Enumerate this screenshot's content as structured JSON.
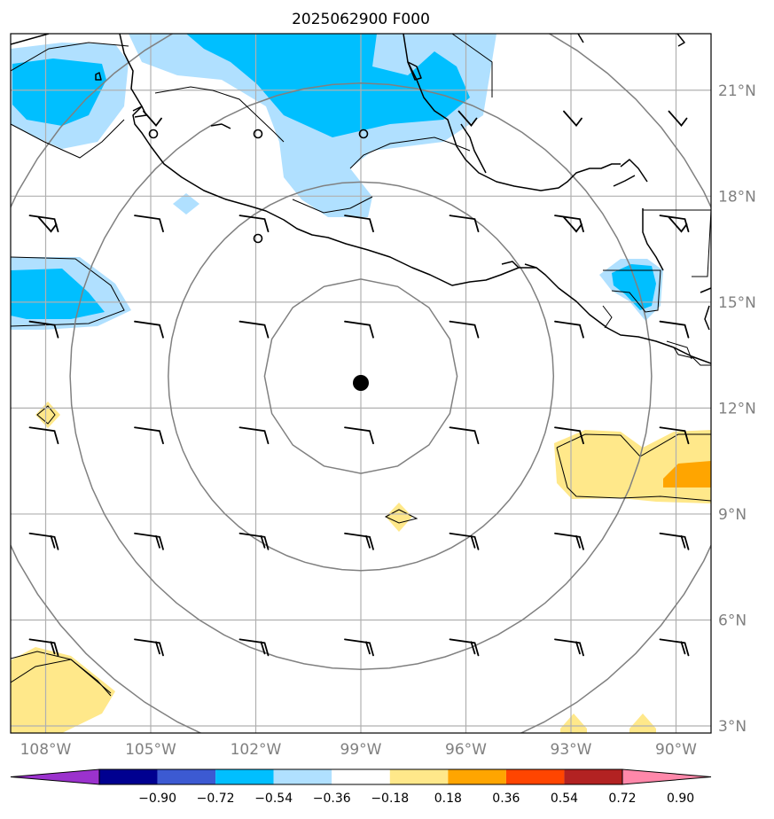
{
  "title": "2025062900 F000",
  "map": {
    "lon_range": [
      -109,
      -89
    ],
    "lat_range": [
      2.8,
      22.6
    ],
    "lon_ticks": [
      {
        "value": -108,
        "label": "108°W"
      },
      {
        "value": -105,
        "label": "105°W"
      },
      {
        "value": -102,
        "label": "102°W"
      },
      {
        "value": -99,
        "label": "99°W"
      },
      {
        "value": -96,
        "label": "96°W"
      },
      {
        "value": -93,
        "label": "93°W"
      },
      {
        "value": -90,
        "label": "90°W"
      }
    ],
    "lat_ticks": [
      {
        "value": 21,
        "label": "21°N"
      },
      {
        "value": 18,
        "label": "18°N"
      },
      {
        "value": 15,
        "label": "15°N"
      },
      {
        "value": 12,
        "label": "12°N"
      },
      {
        "value": 9,
        "label": "9°N"
      },
      {
        "value": 6,
        "label": "6°N"
      },
      {
        "value": 3,
        "label": "3°N"
      }
    ],
    "center": {
      "lon": -99.0,
      "lat": 12.9
    },
    "range_rings_deg": [
      2.75,
      5.5,
      8.3,
      11.1
    ]
  },
  "colorbar": {
    "levels": [
      "−0.90",
      "−0.72",
      "−0.54",
      "−0.36",
      "−0.18",
      "0.18",
      "0.36",
      "0.54",
      "0.72",
      "0.90"
    ],
    "colors": [
      "#9b32cd",
      "#000090",
      "#3c5ad2",
      "#00bfff",
      "#b0e0ff",
      "#ffffff",
      "#ffe88a",
      "#ffa500",
      "#ff4500",
      "#b22222",
      "#ff88aa"
    ]
  },
  "field_colors": {
    "neg_light": "#b0e0ff",
    "neg_dark": "#00bfff",
    "pos_light": "#ffe88a",
    "pos_dark": "#ffa500"
  },
  "chart_data": {
    "type": "heatmap",
    "title": "2025062900 F000",
    "xlabel": "",
    "ylabel": "",
    "xlim": [
      -109,
      -89
    ],
    "ylim": [
      2.8,
      22.6
    ],
    "shaded_regions": [
      {
        "level": "-0.54 to -0.36",
        "lon": [
          -108.5,
          -106.5
        ],
        "lat": [
          20.2,
          21.8
        ]
      },
      {
        "level": "-0.54 to -0.36",
        "lon": [
          -109,
          -106.5
        ],
        "lat": [
          14.8,
          16.2
        ]
      },
      {
        "level": "-0.54 to -0.36",
        "lon": [
          -103,
          -95.5
        ],
        "lat": [
          20.5,
          22.6
        ]
      },
      {
        "level": "0.36 to 0.54",
        "lon": [
          -90.5,
          -89
        ],
        "lat": [
          10.0,
          10.7
        ]
      },
      {
        "level": "0.18 to 0.36",
        "lon": [
          -93.5,
          -89
        ],
        "lat": [
          9.6,
          11.9
        ]
      },
      {
        "level": "0.18 to 0.36",
        "lon": [
          -109,
          -106.5
        ],
        "lat": [
          3.0,
          5.0
        ]
      }
    ],
    "center_marker": {
      "lon": -99.0,
      "lat": 12.9
    },
    "grid": true
  }
}
